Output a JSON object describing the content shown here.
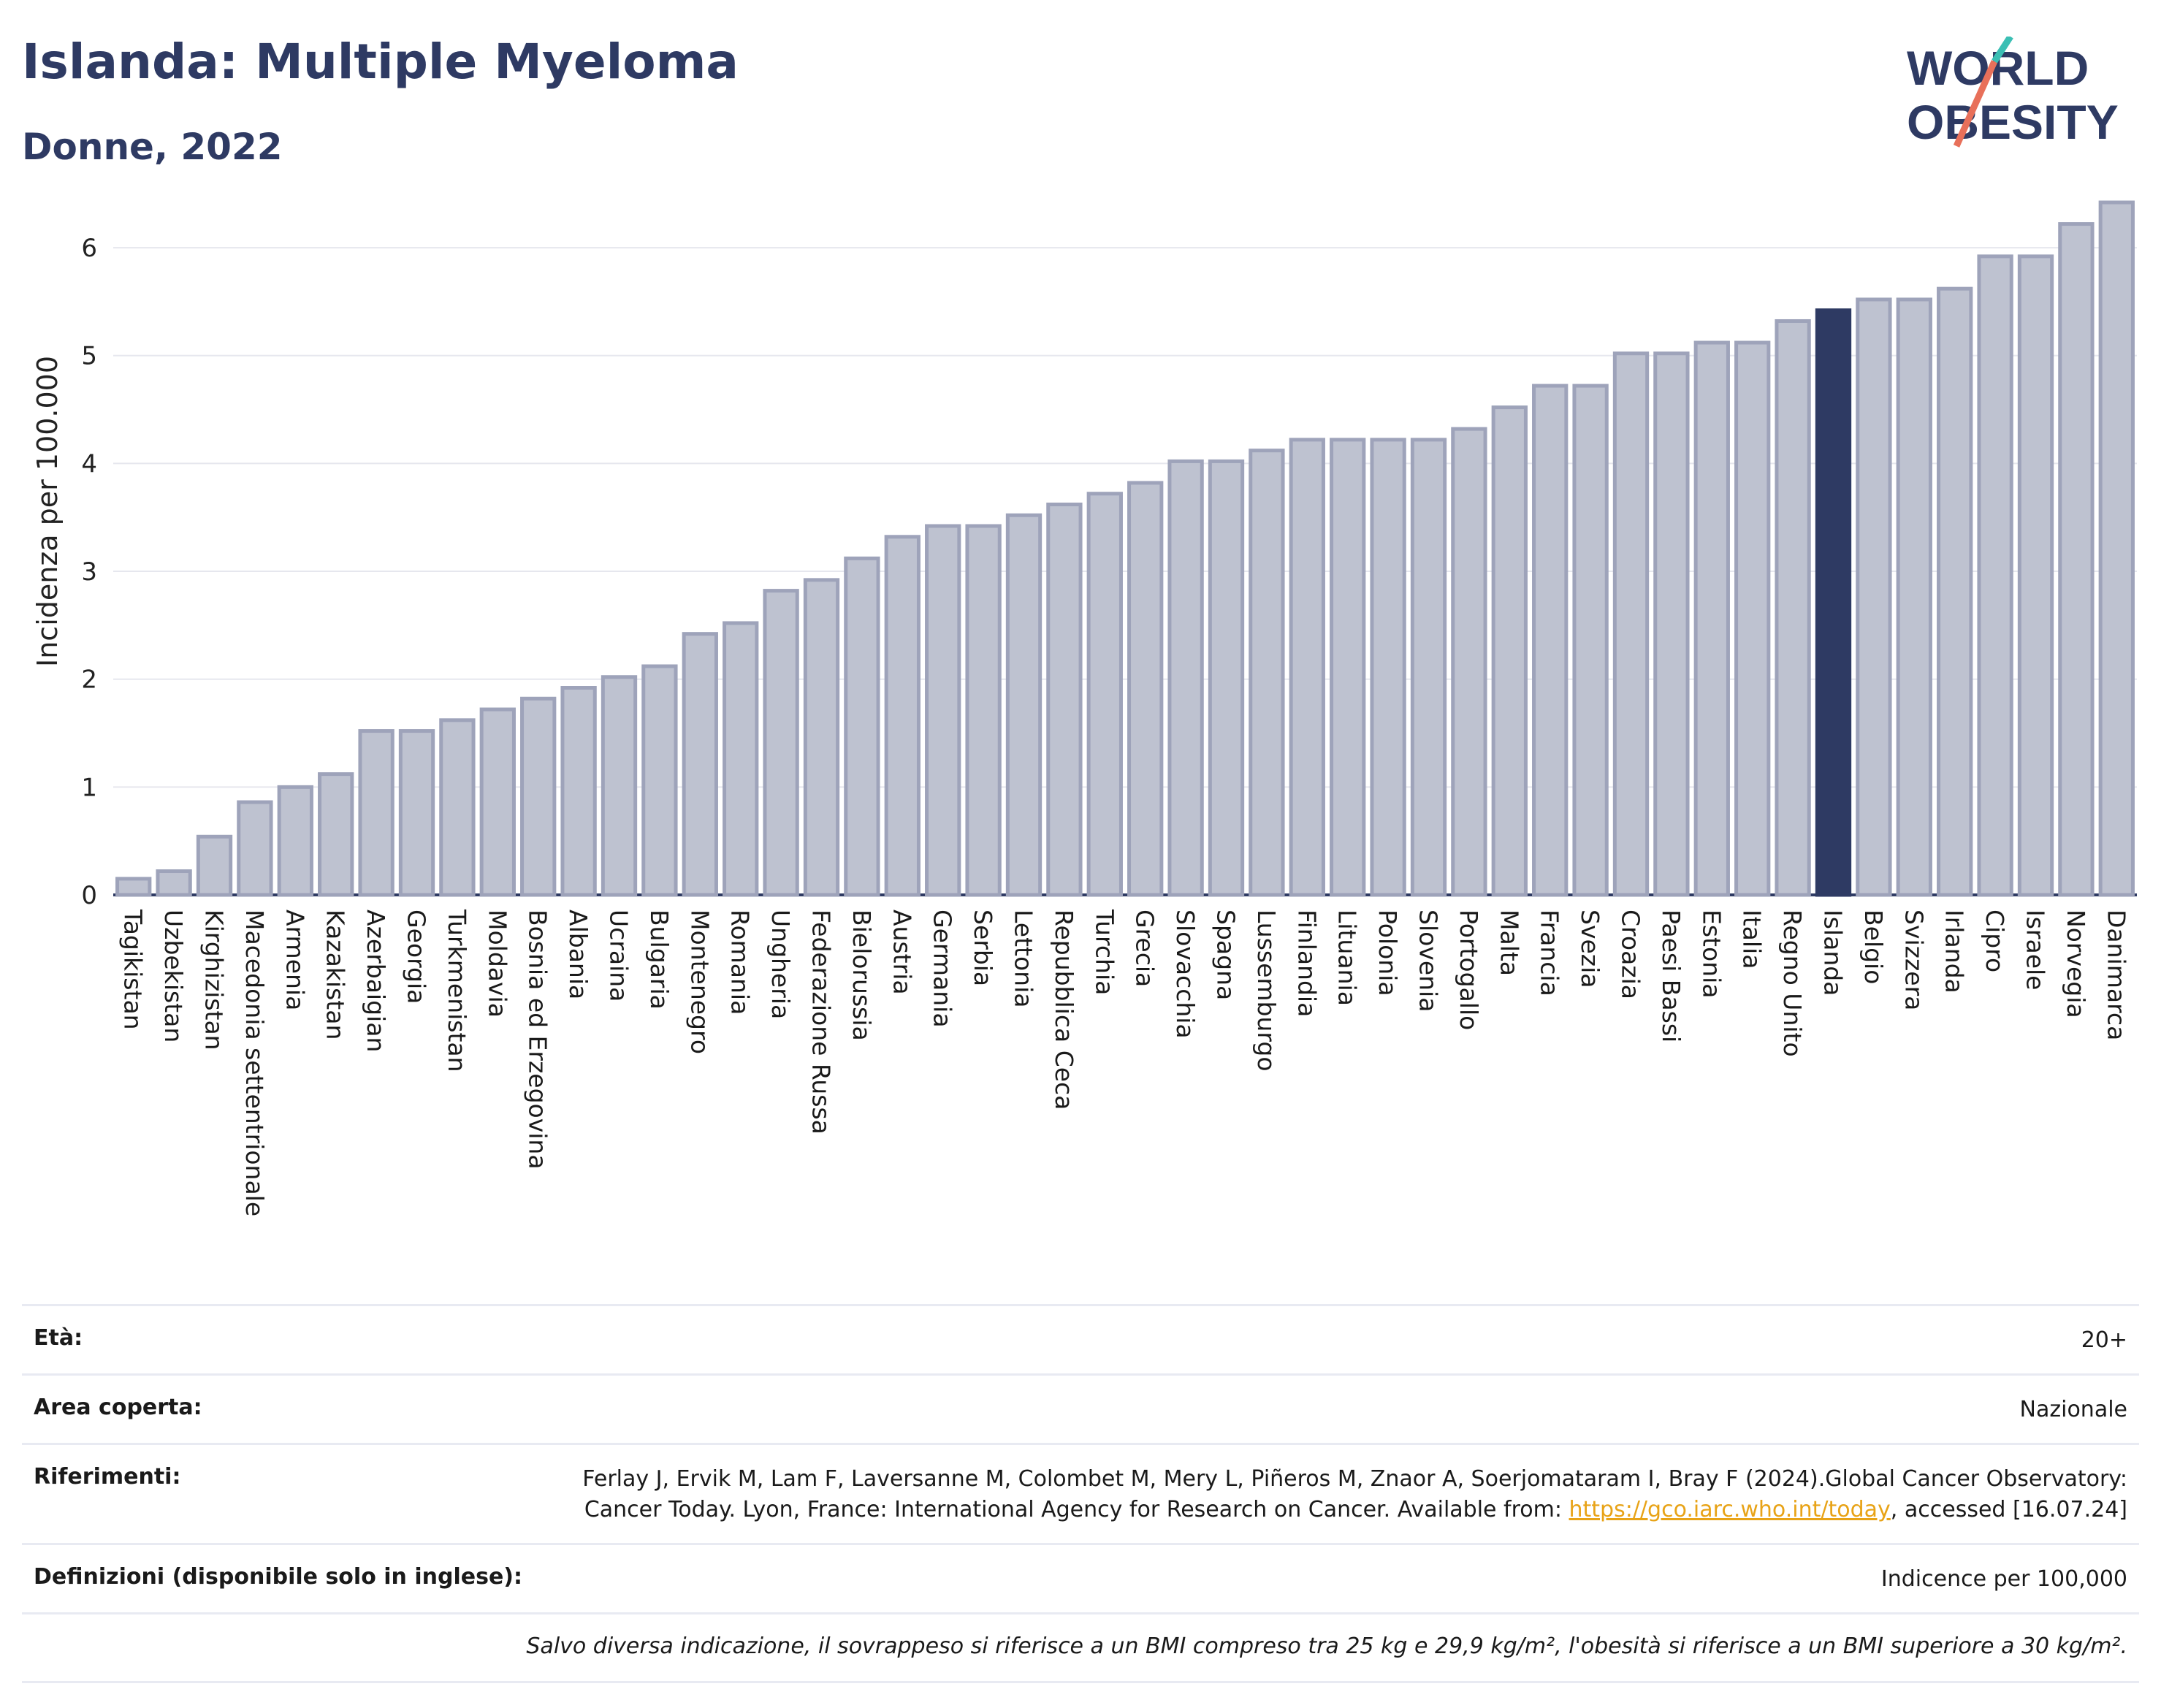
{
  "header": {
    "title": "Islanda: Multiple Myeloma",
    "subtitle": "Donne, 2022"
  },
  "logo": {
    "line1": "WORLD",
    "line2": "OBESITY"
  },
  "chart_data": {
    "type": "bar",
    "ylabel": "Incidenza per 100.000",
    "ylim": [
      0,
      6.5
    ],
    "yticks": [
      0,
      1,
      2,
      3,
      4,
      5,
      6
    ],
    "grid": true,
    "highlight": "Islanda",
    "colors": {
      "bar": "#bec2d0",
      "bar_border": "#9ea3ba",
      "highlight": "#2e3a63"
    },
    "categories": [
      "Tagikistan",
      "Uzbekistan",
      "Kirghizistan",
      "Macedonia settentrionale",
      "Armenia",
      "Kazakistan",
      "Azerbaigian",
      "Georgia",
      "Turkmenistan",
      "Moldavia",
      "Bosnia ed Erzegovina",
      "Albania",
      "Ucraina",
      "Bulgaria",
      "Montenegro",
      "Romania",
      "Ungheria",
      "Federazione Russa",
      "Bielorussia",
      "Austria",
      "Germania",
      "Serbia",
      "Lettonia",
      "Repubblica Ceca",
      "Turchia",
      "Grecia",
      "Slovacchia",
      "Spagna",
      "Lussemburgo",
      "Finlandia",
      "Lituania",
      "Polonia",
      "Slovenia",
      "Portogallo",
      "Malta",
      "Francia",
      "Svezia",
      "Croazia",
      "Paesi Bassi",
      "Estonia",
      "Italia",
      "Regno Unito",
      "Islanda",
      "Belgio",
      "Svizzera",
      "Irlanda",
      "Cipro",
      "Israele",
      "Norvegia",
      "Danimarca"
    ],
    "values": [
      0.15,
      0.22,
      0.54,
      0.86,
      1.0,
      1.12,
      1.52,
      1.52,
      1.62,
      1.72,
      1.82,
      1.92,
      2.02,
      2.12,
      2.42,
      2.52,
      2.82,
      2.92,
      3.12,
      3.32,
      3.42,
      3.42,
      3.52,
      3.62,
      3.72,
      3.82,
      4.02,
      4.02,
      4.12,
      4.22,
      4.22,
      4.22,
      4.22,
      4.32,
      4.52,
      4.72,
      4.72,
      5.02,
      5.02,
      5.12,
      5.12,
      5.32,
      5.42,
      5.52,
      5.52,
      5.62,
      5.92,
      5.92,
      6.22,
      6.42
    ]
  },
  "info": {
    "age_label": "Età:",
    "age_value": "20+",
    "area_label": "Area coperta:",
    "area_value": "Nazionale",
    "ref_label": "Riferimenti:",
    "ref_text_1": "Ferlay J, Ervik M, Lam F, Laversanne M, Colombet M, Mery L, Piñeros M, Znaor A, Soerjomataram I, Bray F (2024).Global Cancer Observatory: Cancer Today. Lyon, France: International Agency for Research on Cancer. Available from: ",
    "ref_link": "https://gco.iarc.who.int/today",
    "ref_text_2": ", accessed [16.07.24]",
    "def_label": "Definizioni (disponibile solo in inglese):",
    "def_value": "Indicence per 100,000",
    "note": "Salvo diversa indicazione, il sovrappeso si riferisce a un BMI compreso tra 25 kg e 29,9 kg/m², l'obesità si riferisce a un BMI superiore a 30 kg/m²."
  }
}
